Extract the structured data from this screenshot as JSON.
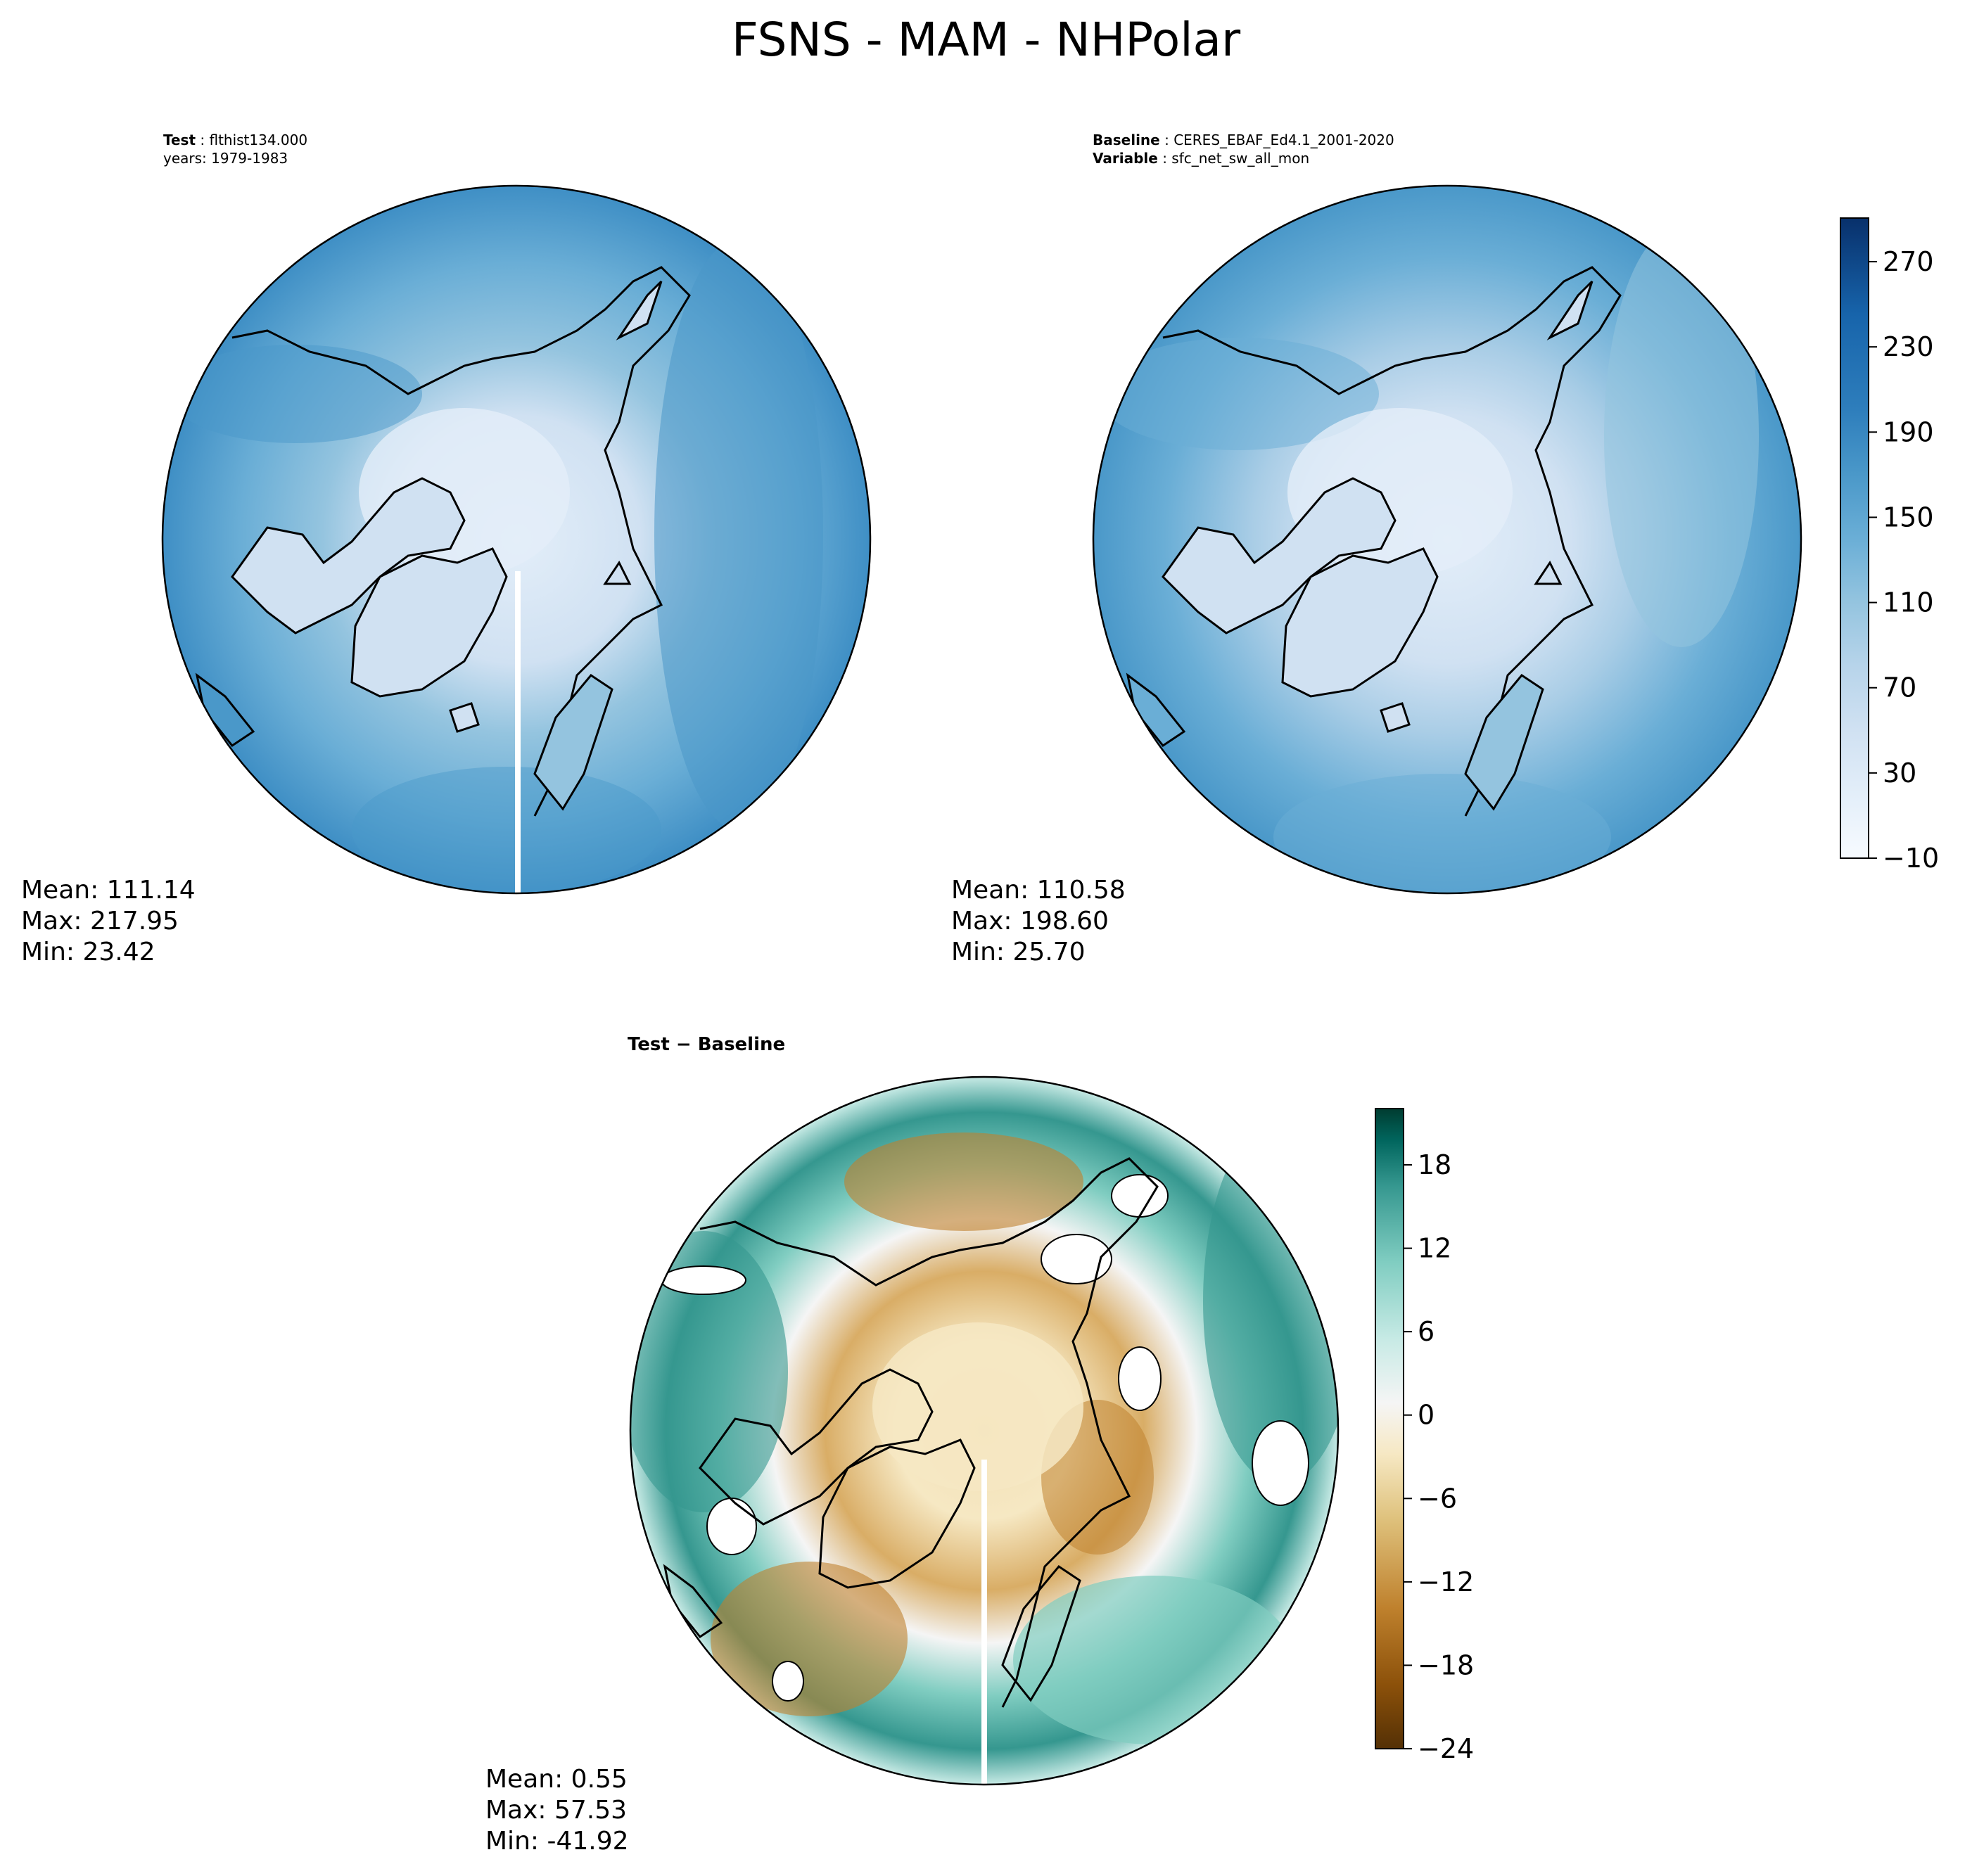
{
  "figure": {
    "title": "FSNS - MAM - NHPolar"
  },
  "panels": {
    "test": {
      "label_bold": "Test",
      "label_value": "flthist134.000",
      "years": "years: 1979-1983",
      "mean": "Mean: 111.14",
      "max": "Max: 217.95",
      "min": "Min: 23.42"
    },
    "baseline": {
      "label_bold": "Baseline",
      "label_value": "CERES_EBAF_Ed4.1_2001-2020",
      "variable_bold": "Variable",
      "variable_value": "sfc_net_sw_all_mon",
      "mean": "Mean: 110.58",
      "max": "Max: 198.60",
      "min": "Min: 25.70"
    },
    "diff": {
      "title": "Test − Baseline",
      "mean": "Mean:  0.55",
      "max": "Max: 57.53",
      "min": "Min: -41.92"
    }
  },
  "colorbars": {
    "main": {
      "ticks": [
        "270",
        "230",
        "190",
        "150",
        "110",
        "70",
        "30",
        "−10"
      ],
      "colors": [
        "#f7fbff",
        "#e3eef9",
        "#d0e1f2",
        "#b7d4ea",
        "#94c4df",
        "#6aaed6",
        "#4a98c9",
        "#2e7ebc",
        "#1764ab",
        "#084a91"
      ]
    },
    "diff": {
      "ticks": [
        "18",
        "12",
        "6",
        "0",
        "−6",
        "−12",
        "−18",
        "−24"
      ],
      "colors": [
        "#543005",
        "#8c510a",
        "#bf812d",
        "#dfc27d",
        "#f6e8c3",
        "#f5f5f5",
        "#c7eae5",
        "#80cdc1",
        "#35978f",
        "#01665e",
        "#003c30"
      ]
    }
  },
  "colors": {
    "ice": "#e3eef9",
    "land_outline": "#000000"
  }
}
